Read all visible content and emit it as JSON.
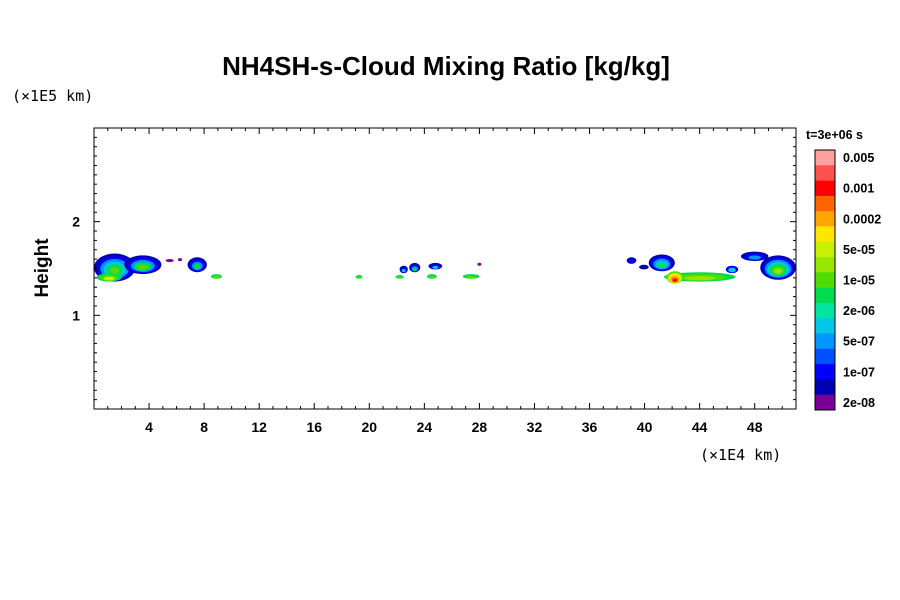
{
  "chart_data": {
    "type": "heatmap",
    "title": "NH4SH-s-Cloud Mixing Ratio [kg/kg]",
    "xlabel": "",
    "ylabel": "Height",
    "x_unit": "(×1E4 km)",
    "y_unit": "(×1E5 km)",
    "time_label": "t=3e+06 s",
    "xlim": [
      0,
      51
    ],
    "ylim": [
      0,
      3
    ],
    "x_ticks": [
      "4",
      "8",
      "12",
      "16",
      "20",
      "24",
      "28",
      "32",
      "36",
      "40",
      "44",
      "48"
    ],
    "y_ticks": [
      "1",
      "2"
    ],
    "colorbar": {
      "levels": [
        "0.005",
        "0.001",
        "0.0002",
        "5e-05",
        "1e-05",
        "2e-06",
        "5e-07",
        "1e-07",
        "2e-08"
      ],
      "colors": [
        "#ffa0a0",
        "#ff5050",
        "#ff0000",
        "#ff6400",
        "#ffa500",
        "#ffe600",
        "#c8f000",
        "#96e600",
        "#50dc00",
        "#00dc50",
        "#00e6a0",
        "#00c8e6",
        "#0096ff",
        "#0050ff",
        "#0000ff",
        "#0000b4",
        "#780096"
      ]
    },
    "features": [
      {
        "x": [
          0.0,
          4.8
        ],
        "y": [
          1.38,
          1.65
        ],
        "peak_level": "1e-05"
      },
      {
        "x": [
          5.1,
          6.3
        ],
        "y": [
          1.55,
          1.6
        ],
        "peak_level": "2e-08"
      },
      {
        "x": [
          6.8,
          8.2
        ],
        "y": [
          1.46,
          1.62
        ],
        "peak_level": "2e-06"
      },
      {
        "x": [
          8.5,
          9.3
        ],
        "y": [
          1.39,
          1.43
        ],
        "peak_level": "1e-05"
      },
      {
        "x": [
          19.0,
          19.5
        ],
        "y": [
          1.39,
          1.43
        ],
        "peak_level": "2e-06"
      },
      {
        "x": [
          21.8,
          26.8
        ],
        "y": [
          1.4,
          1.55
        ],
        "peak_level": "1e-05"
      },
      {
        "x": [
          26.8,
          28.0
        ],
        "y": [
          1.39,
          1.43
        ],
        "peak_level": "1e-05"
      },
      {
        "x": [
          38.7,
          39.4
        ],
        "y": [
          1.55,
          1.62
        ],
        "peak_level": "2e-08"
      },
      {
        "x": [
          40.3,
          46.8
        ],
        "y": [
          1.36,
          1.62
        ],
        "peak_level": "0.0002"
      },
      {
        "x": [
          47.0,
          51.0
        ],
        "y": [
          1.38,
          1.68
        ],
        "peak_level": "5e-05"
      }
    ]
  }
}
